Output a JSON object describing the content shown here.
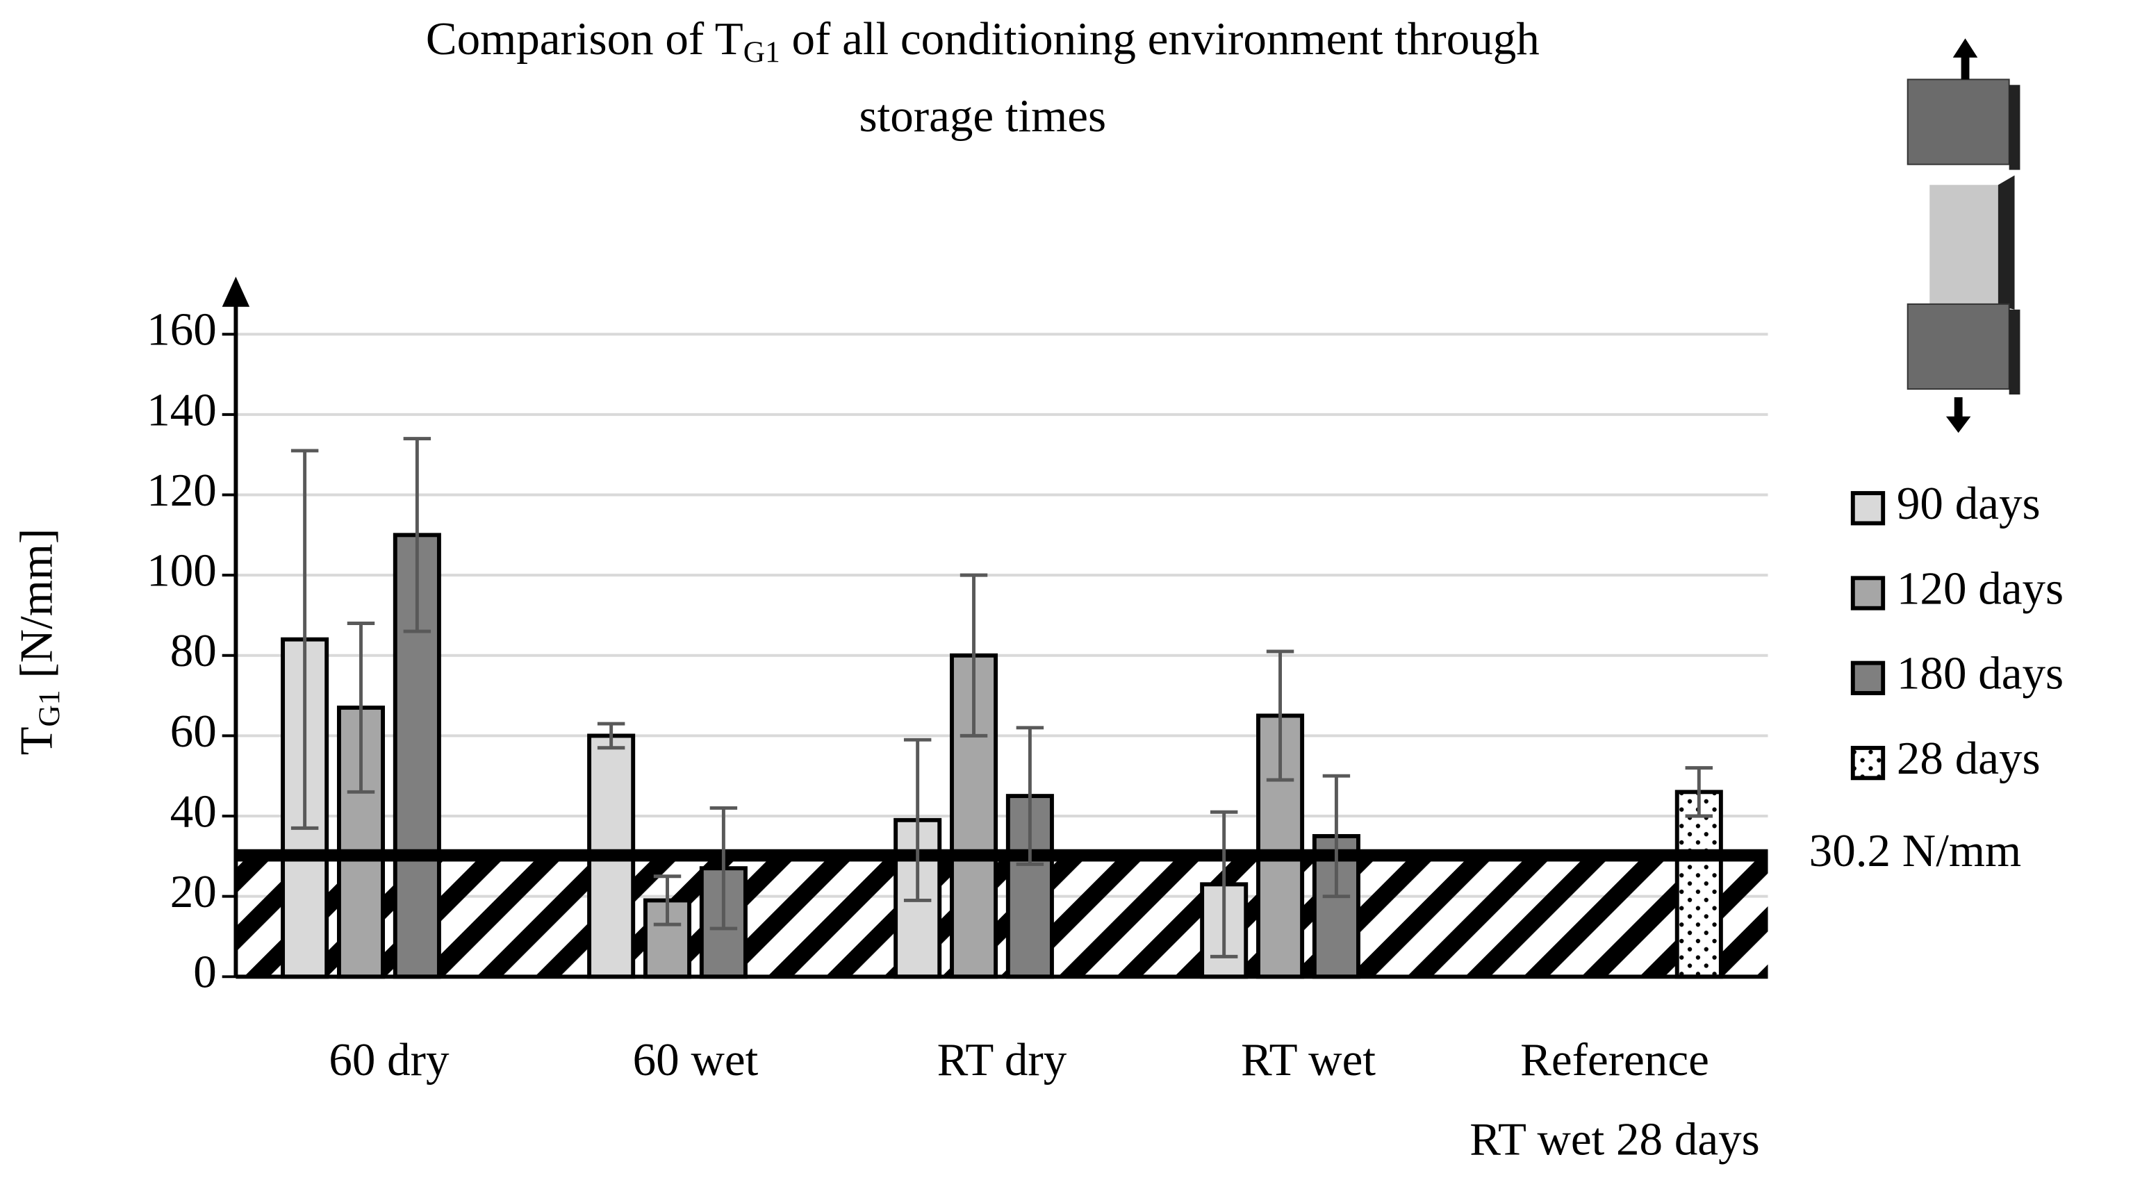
{
  "chart_data": {
    "type": "bar",
    "title": [
      "Comparison of T",
      "G1",
      " of all conditioning environment through",
      "storage times"
    ],
    "y_label": [
      "T",
      "G1",
      " [N/mm]"
    ],
    "categories": [
      "60 dry",
      "60 wet",
      "RT dry",
      "RT wet",
      [
        "Reference",
        "RT wet 28 days"
      ]
    ],
    "series": [
      {
        "name": "90 days",
        "color": "#d9d9d9",
        "values": [
          84,
          60,
          39,
          23,
          null
        ],
        "errors": [
          47,
          3,
          20,
          18,
          null
        ]
      },
      {
        "name": "120 days",
        "color": "#a6a6a6",
        "values": [
          67,
          19,
          80,
          65,
          null
        ],
        "errors": [
          21,
          6,
          20,
          16,
          null
        ]
      },
      {
        "name": "180 days",
        "color": "#7f7f7f",
        "values": [
          110,
          27,
          45,
          35,
          null
        ],
        "errors": [
          24,
          15,
          17,
          15,
          null
        ]
      },
      {
        "name": "28 days",
        "color": "#ffffff",
        "pattern": "dots",
        "values": [
          null,
          null,
          null,
          null,
          46
        ],
        "errors": [
          null,
          null,
          null,
          null,
          6
        ]
      }
    ],
    "threshold": {
      "value": 30.2,
      "label": "30.2 N/mm"
    },
    "ylim": [
      0,
      160
    ],
    "yticks": [
      0,
      20,
      40,
      60,
      80,
      100,
      120,
      140,
      160
    ],
    "grid": true,
    "legend": "right"
  }
}
